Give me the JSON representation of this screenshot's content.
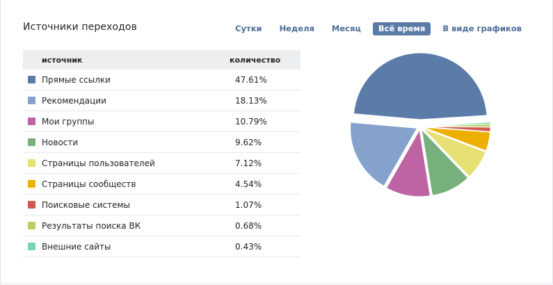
{
  "header": {
    "title": "Источники переходов"
  },
  "tabs": [
    {
      "label": "Сутки",
      "active": false
    },
    {
      "label": "Неделя",
      "active": false
    },
    {
      "label": "Месяц",
      "active": false
    },
    {
      "label": "Всё время",
      "active": true
    },
    {
      "label": "В виде графиков",
      "active": false
    }
  ],
  "table": {
    "columns": [
      "источник",
      "количество"
    ],
    "rows": [
      {
        "source": "Прямые ссылки",
        "value": "47.61%",
        "color": "#5b7ba8"
      },
      {
        "source": "Рекомендации",
        "value": "18.13%",
        "color": "#84a2cc"
      },
      {
        "source": "Мои группы",
        "value": "10.79%",
        "color": "#be64a4"
      },
      {
        "source": "Новости",
        "value": "9.62%",
        "color": "#76b07d"
      },
      {
        "source": "Страницы пользователей",
        "value": "7.12%",
        "color": "#e7e074"
      },
      {
        "source": "Страницы сообществ",
        "value": "4.54%",
        "color": "#eeb000"
      },
      {
        "source": "Поисковые системы",
        "value": "1.07%",
        "color": "#d2594f"
      },
      {
        "source": "Результаты поиска ВК",
        "value": "0.68%",
        "color": "#b6d15f"
      },
      {
        "source": "Внешние сайты",
        "value": "0.43%",
        "color": "#75d4b4"
      }
    ]
  },
  "chart_data": {
    "type": "pie",
    "title": "",
    "categories": [
      "Прямые ссылки",
      "Рекомендации",
      "Мои группы",
      "Новости",
      "Страницы пользователей",
      "Страницы сообществ",
      "Поисковые системы",
      "Результаты поиска ВК",
      "Внешние сайты"
    ],
    "values": [
      47.61,
      18.13,
      10.79,
      9.62,
      7.12,
      4.54,
      1.07,
      0.68,
      0.43
    ],
    "colors": [
      "#5b7ba8",
      "#84a2cc",
      "#be64a4",
      "#76b07d",
      "#e7e074",
      "#eeb000",
      "#d2594f",
      "#b6d15f",
      "#75d4b4"
    ],
    "exploded": true
  }
}
